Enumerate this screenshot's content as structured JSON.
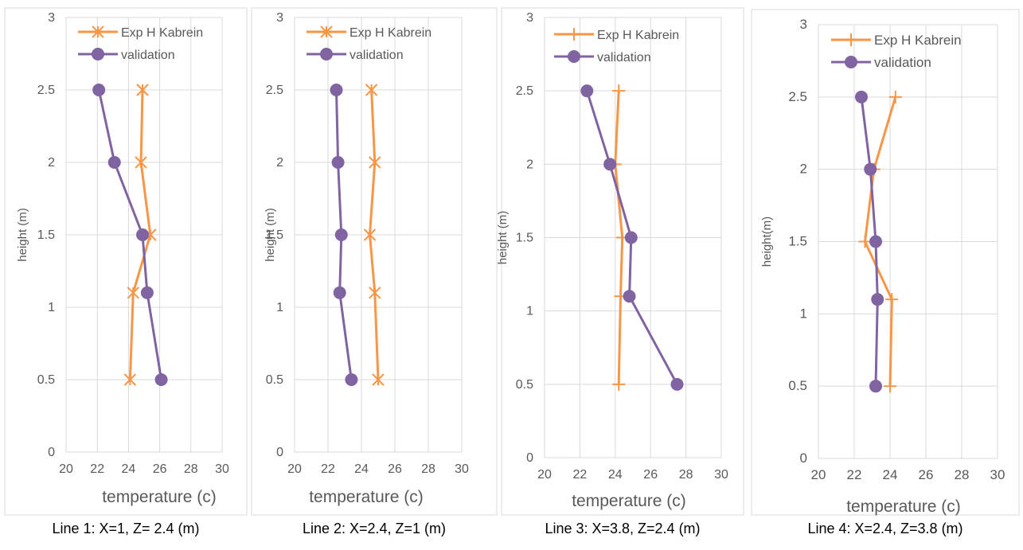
{
  "chart_data": [
    {
      "type": "line",
      "caption": "Line 1: X=1, Z= 2.4 (m)",
      "xlabel": "temperature (c)",
      "ylabel": "height (m)",
      "xlim": [
        20,
        30
      ],
      "ylim": [
        0,
        3
      ],
      "x_ticks": [
        20,
        22,
        24,
        26,
        28,
        30
      ],
      "y_ticks": [
        0,
        0.5,
        1,
        1.5,
        2,
        2.5,
        3
      ],
      "grid": true,
      "legend_position": "top",
      "series": [
        {
          "name": "Exp H Kabrein",
          "marker": "star",
          "color": "#F79646",
          "points": [
            [
              24.9,
              2.5
            ],
            [
              24.8,
              2.0
            ],
            [
              25.4,
              1.5
            ],
            [
              24.3,
              1.1
            ],
            [
              24.1,
              0.5
            ]
          ]
        },
        {
          "name": "validation",
          "marker": "circle",
          "color": "#8064A2",
          "points": [
            [
              22.1,
              2.5
            ],
            [
              23.1,
              2.0
            ],
            [
              24.9,
              1.5
            ],
            [
              25.2,
              1.1
            ],
            [
              26.1,
              0.5
            ]
          ]
        }
      ]
    },
    {
      "type": "line",
      "caption": "Line 2: X=2.4, Z=1 (m)",
      "xlabel": "temperature (c)",
      "ylabel": "height (m)",
      "xlim": [
        20,
        30
      ],
      "ylim": [
        0,
        3
      ],
      "x_ticks": [
        20,
        22,
        24,
        26,
        28,
        30
      ],
      "y_ticks": [
        0,
        0.5,
        1,
        1.5,
        2,
        2.5,
        3
      ],
      "grid": true,
      "legend_position": "top",
      "series": [
        {
          "name": "Exp H Kabrein",
          "marker": "star",
          "color": "#F79646",
          "points": [
            [
              24.6,
              2.5
            ],
            [
              24.8,
              2.0
            ],
            [
              24.5,
              1.5
            ],
            [
              24.8,
              1.1
            ],
            [
              25.0,
              0.5
            ]
          ]
        },
        {
          "name": "validation",
          "marker": "circle",
          "color": "#8064A2",
          "points": [
            [
              22.5,
              2.5
            ],
            [
              22.6,
              2.0
            ],
            [
              22.8,
              1.5
            ],
            [
              22.7,
              1.1
            ],
            [
              23.4,
              0.5
            ]
          ]
        }
      ]
    },
    {
      "type": "line",
      "caption": "Line 3: X=3.8, Z=2.4 (m)",
      "xlabel": "temperature (c)",
      "ylabel": "height (m)",
      "xlim": [
        20,
        30
      ],
      "ylim": [
        0,
        3
      ],
      "x_ticks": [
        20,
        22,
        24,
        26,
        28,
        30
      ],
      "y_ticks": [
        0,
        0.5,
        1,
        1.5,
        2,
        2.5,
        3
      ],
      "grid": true,
      "legend_position": "top",
      "series": [
        {
          "name": "Exp H Kabrein",
          "marker": "plus",
          "color": "#F79646",
          "points": [
            [
              24.2,
              2.5
            ],
            [
              24.0,
              2.0
            ],
            [
              24.4,
              1.5
            ],
            [
              24.3,
              1.1
            ],
            [
              24.2,
              0.5
            ]
          ]
        },
        {
          "name": "validation",
          "marker": "circle",
          "color": "#8064A2",
          "points": [
            [
              22.4,
              2.5
            ],
            [
              23.7,
              2.0
            ],
            [
              24.9,
              1.5
            ],
            [
              24.8,
              1.1
            ],
            [
              27.5,
              0.5
            ]
          ]
        }
      ]
    },
    {
      "type": "line",
      "caption": "Line 4: X=2.4, Z=3.8 (m)",
      "xlabel": "temperature (c)",
      "ylabel": "height(m)",
      "xlim": [
        20,
        30
      ],
      "ylim": [
        0,
        3
      ],
      "x_ticks": [
        20,
        22,
        24,
        26,
        28,
        30
      ],
      "y_ticks": [
        0,
        0.5,
        1,
        1.5,
        2,
        2.5,
        3
      ],
      "grid": true,
      "legend_position": "top",
      "series": [
        {
          "name": "Exp H Kabrein",
          "marker": "plus",
          "color": "#F79646",
          "points": [
            [
              24.3,
              2.5
            ],
            [
              23.1,
              2.0
            ],
            [
              22.6,
              1.5
            ],
            [
              24.1,
              1.1
            ],
            [
              24.0,
              0.5
            ]
          ]
        },
        {
          "name": "validation",
          "marker": "circle",
          "color": "#8064A2",
          "points": [
            [
              22.4,
              2.5
            ],
            [
              22.9,
              2.0
            ],
            [
              23.2,
              1.5
            ],
            [
              23.3,
              1.1
            ],
            [
              23.2,
              0.5
            ]
          ]
        }
      ]
    }
  ]
}
